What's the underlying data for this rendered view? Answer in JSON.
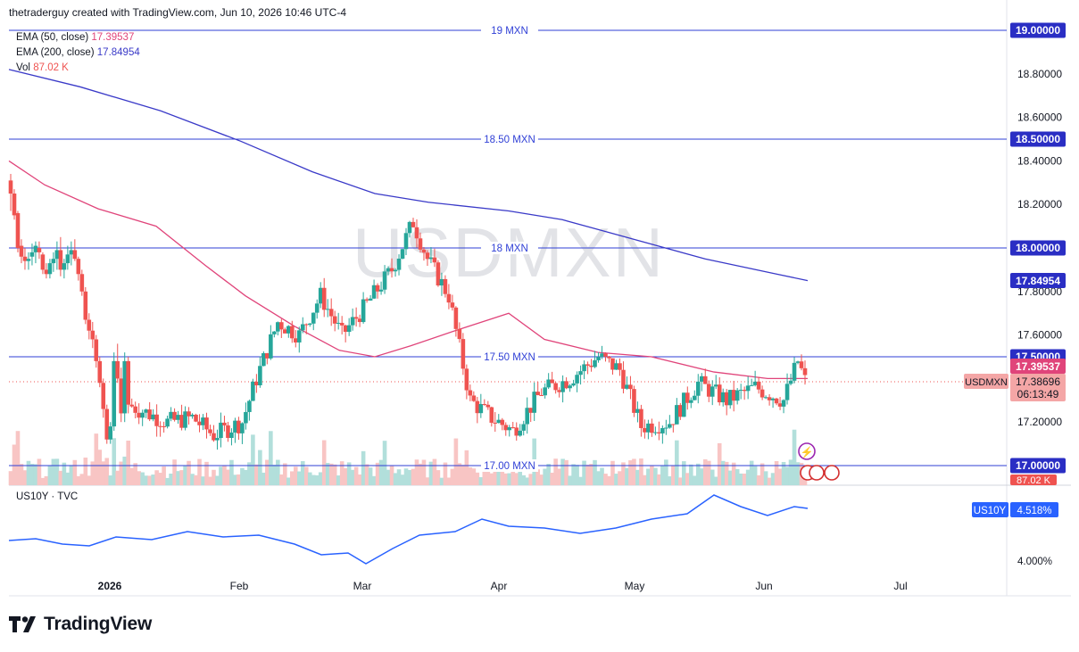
{
  "header": {
    "title": "thetraderguy created with TradingView.com, Jun 10, 2026 10:46 UTC-4"
  },
  "legend": {
    "ema50_label": "EMA (50, close)",
    "ema50_value": "17.39537",
    "ema200_label": "EMA (200, close)",
    "ema200_value": "17.84954",
    "vol_label": "Vol",
    "vol_value": "87.02 K"
  },
  "watermark": "USDMXN",
  "levels": [
    {
      "price": 19.0,
      "label": "19 MXN",
      "tag": "19.00000"
    },
    {
      "price": 18.5,
      "label": "18.50 MXN",
      "tag": "18.50000"
    },
    {
      "price": 18.0,
      "label": "18 MXN",
      "tag": "18.00000"
    },
    {
      "price": 17.5,
      "label": "17.50 MXN",
      "tag": "17.50000"
    },
    {
      "price": 17.0,
      "label": "17.00 MXN",
      "tag": "17.00000"
    }
  ],
  "price_axis": [
    "18.80000",
    "18.60000",
    "18.40000",
    "18.20000",
    "17.80000",
    "17.60000",
    "17.20000"
  ],
  "tags": {
    "ema200": "17.84954",
    "ema50": "17.39537",
    "last_price": "17.38696",
    "countdown": "06:13:49",
    "symbol": "USDMXN",
    "volume": "87.02 K",
    "sub_symbol": "US10Y",
    "sub_value": "4.518%"
  },
  "sub_legend": "US10Y · TVC",
  "sub_axis": "4.000%",
  "time_axis": [
    "2026",
    "Feb",
    "Mar",
    "Apr",
    "May",
    "Jun",
    "Jul"
  ],
  "brand": "TradingView",
  "colors": {
    "up": "#26a69a",
    "down": "#ef5350",
    "ema50": "#e0447a",
    "ema200": "#3a3ac8",
    "level": "#2f3fd6",
    "us10y": "#2962ff"
  },
  "chart_data": {
    "type": "candlestick",
    "symbol": "USDMXN",
    "period": "daily, Dec 2025 – Jun 10 2026",
    "ylim": [
      17.0,
      19.0
    ],
    "horizontal_levels": [
      19.0,
      18.5,
      18.0,
      17.5,
      17.0
    ],
    "series": [
      {
        "name": "EMA (50, close)",
        "last": 17.39537,
        "points": [
          [
            0,
            18.4
          ],
          [
            40,
            18.29
          ],
          [
            100,
            18.18
          ],
          [
            165,
            18.1
          ],
          [
            220,
            17.92
          ],
          [
            265,
            17.78
          ],
          [
            320,
            17.64
          ],
          [
            370,
            17.53
          ],
          [
            410,
            17.5
          ],
          [
            450,
            17.55
          ],
          [
            500,
            17.62
          ],
          [
            560,
            17.7
          ],
          [
            600,
            17.58
          ],
          [
            660,
            17.52
          ],
          [
            720,
            17.5
          ],
          [
            790,
            17.43
          ],
          [
            850,
            17.4
          ],
          [
            895,
            17.4
          ]
        ]
      },
      {
        "name": "EMA (200, close)",
        "last": 17.84954,
        "points": [
          [
            0,
            18.82
          ],
          [
            80,
            18.74
          ],
          [
            170,
            18.63
          ],
          [
            260,
            18.49
          ],
          [
            340,
            18.35
          ],
          [
            410,
            18.25
          ],
          [
            470,
            18.21
          ],
          [
            560,
            18.17
          ],
          [
            620,
            18.13
          ],
          [
            700,
            18.04
          ],
          [
            780,
            17.95
          ],
          [
            860,
            17.88
          ],
          [
            895,
            17.85
          ]
        ]
      },
      {
        "name": "US10Y",
        "last": "4.518%"
      }
    ],
    "candles_ohlc": [
      [
        18.31,
        18.34,
        18.17,
        18.25
      ],
      [
        18.25,
        18.27,
        18.13,
        18.15
      ],
      [
        18.16,
        18.17,
        17.98,
        18.0
      ],
      [
        18.01,
        18.04,
        17.93,
        17.96
      ],
      [
        17.96,
        18.0,
        17.9,
        17.94
      ],
      [
        17.94,
        17.98,
        17.9,
        17.95
      ],
      [
        17.96,
        18.02,
        17.92,
        17.98
      ],
      [
        17.98,
        18.03,
        17.93,
        18.01
      ],
      [
        18.0,
        18.03,
        17.95,
        17.98
      ],
      [
        17.97,
        17.98,
        17.88,
        17.9
      ],
      [
        17.9,
        17.93,
        17.86,
        17.88
      ],
      [
        17.88,
        17.95,
        17.86,
        17.93
      ],
      [
        17.93,
        17.98,
        17.89,
        17.95
      ],
      [
        17.95,
        18.03,
        17.9,
        17.99
      ],
      [
        17.99,
        18.05,
        17.87,
        17.9
      ],
      [
        17.9,
        17.95,
        17.86,
        17.93
      ],
      [
        17.93,
        18.01,
        17.9,
        17.97
      ],
      [
        17.97,
        18.03,
        17.92,
        17.99
      ],
      [
        17.99,
        18.04,
        17.94,
        17.95
      ],
      [
        17.95,
        17.96,
        17.85,
        17.88
      ],
      [
        17.88,
        17.9,
        17.78,
        17.8
      ],
      [
        17.8,
        17.82,
        17.65,
        17.67
      ],
      [
        17.67,
        17.7,
        17.58,
        17.62
      ],
      [
        17.62,
        17.66,
        17.54,
        17.58
      ],
      [
        17.58,
        17.6,
        17.45,
        17.48
      ],
      [
        17.48,
        17.5,
        17.36,
        17.38
      ],
      [
        17.38,
        17.4,
        17.22,
        17.26
      ],
      [
        17.26,
        17.28,
        17.1,
        17.12
      ],
      [
        17.12,
        17.2,
        17.1,
        17.18
      ],
      [
        17.18,
        17.52,
        17.16,
        17.48
      ],
      [
        17.48,
        17.56,
        17.38,
        17.4
      ],
      [
        17.4,
        17.45,
        17.2,
        17.24
      ],
      [
        17.24,
        17.52,
        17.2,
        17.48
      ],
      [
        17.48,
        17.5,
        17.24,
        17.28
      ]
    ]
  }
}
